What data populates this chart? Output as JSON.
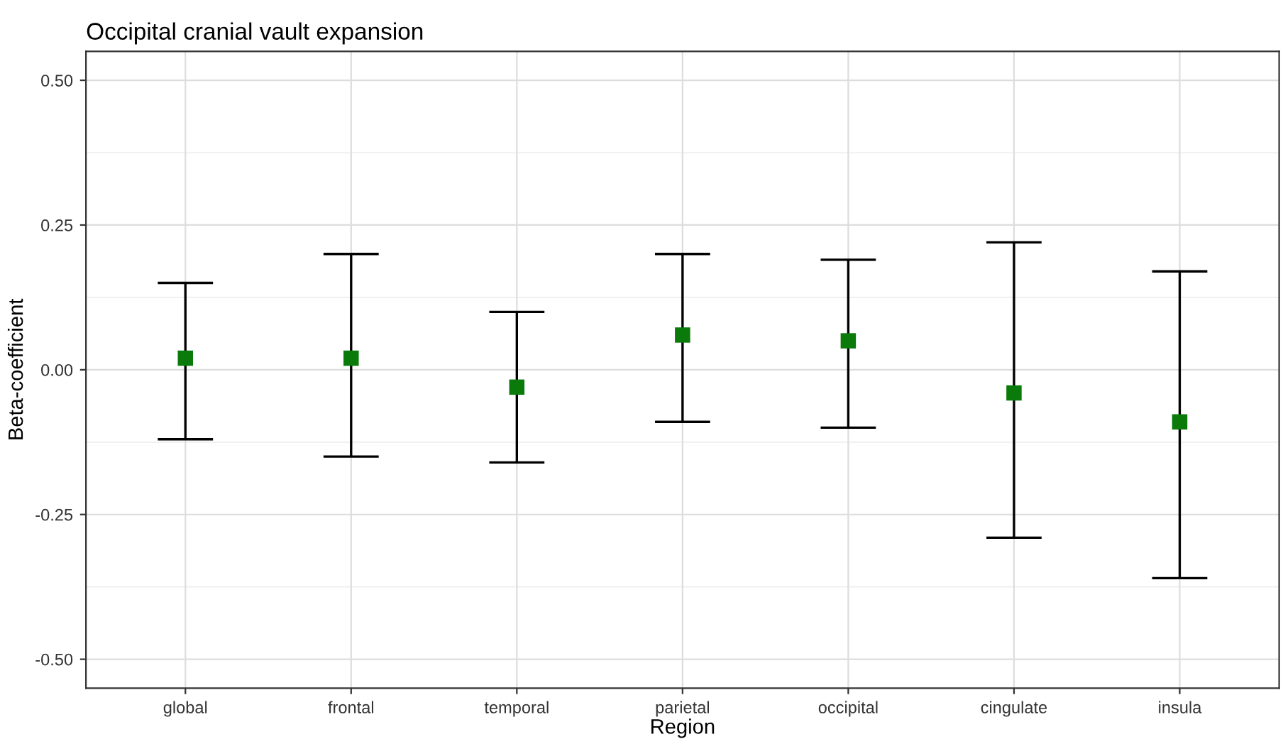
{
  "chart_data": {
    "type": "scatter",
    "title": "Occipital cranial vault expansion",
    "xlabel": "Region",
    "ylabel": "Beta-coefficient",
    "categories": [
      "global",
      "frontal",
      "temporal",
      "parietal",
      "occipital",
      "cingulate",
      "insula"
    ],
    "series": [
      {
        "color": "#0a7a0a",
        "values": [
          0.02,
          0.02,
          -0.03,
          0.06,
          0.05,
          -0.04,
          -0.09
        ],
        "errors": [
          [
            -0.12,
            0.15
          ],
          [
            -0.15,
            0.2
          ],
          [
            -0.16,
            0.1
          ],
          [
            -0.09,
            0.2
          ],
          [
            -0.1,
            0.19
          ],
          [
            -0.29,
            0.22
          ],
          [
            -0.36,
            0.17
          ]
        ]
      }
    ],
    "ylim": [
      -0.55,
      0.55
    ],
    "yticks": [
      {
        "value": -0.5,
        "label": "-0.50"
      },
      {
        "value": -0.25,
        "label": "-0.25"
      },
      {
        "value": 0,
        "label": "0.00"
      },
      {
        "value": 0.25,
        "label": "0.25"
      },
      {
        "value": 0.5,
        "label": "0.50"
      }
    ],
    "grid": true,
    "marker": "square"
  }
}
